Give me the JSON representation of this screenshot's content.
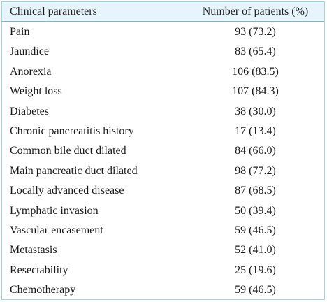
{
  "table": {
    "headers": {
      "parameter": "Clinical parameters",
      "patients": "Number of patients (%)"
    },
    "rows": [
      {
        "parameter": "Pain",
        "value": "93 (73.2)"
      },
      {
        "parameter": "Jaundice",
        "value": "83 (65.4)"
      },
      {
        "parameter": "Anorexia",
        "value": "106 (83.5)"
      },
      {
        "parameter": "Weight loss",
        "value": "107 (84.3)"
      },
      {
        "parameter": "Diabetes",
        "value": "38 (30.0)"
      },
      {
        "parameter": "Chronic pancreatitis history",
        "value": "17 (13.4)"
      },
      {
        "parameter": "Common bile duct dilated",
        "value": "84 (66.0)"
      },
      {
        "parameter": "Main pancreatic duct dilated",
        "value": "98 (77.2)"
      },
      {
        "parameter": "Locally advanced disease",
        "value": "87 (68.5)"
      },
      {
        "parameter": "Lymphatic invasion",
        "value": "50 (39.4)"
      },
      {
        "parameter": "Vascular encasement",
        "value": "59 (46.5)"
      },
      {
        "parameter": "Metastasis",
        "value": "52 (41.0)"
      },
      {
        "parameter": "Resectability",
        "value": "25 (19.6)"
      },
      {
        "parameter": "Chemotherapy",
        "value": "59 (46.5)"
      }
    ]
  },
  "colors": {
    "header_background": "#e6f4fb",
    "border": "#9fd3e6",
    "header_rule": "#6cbcd9"
  }
}
